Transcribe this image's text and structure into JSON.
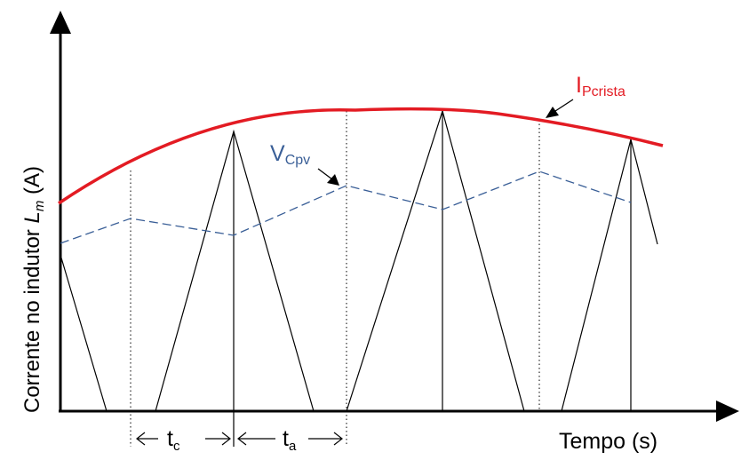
{
  "diagram": {
    "ylabel_main": "Corrente no indutor ",
    "ylabel_symbol": "L",
    "ylabel_sub": "m",
    "ylabel_unit": " (A)",
    "xlabel": "Tempo (s)",
    "label_ipeak_main": "I",
    "label_ipeak_sub": "Pcrista",
    "label_vcpv_main": "V",
    "label_vcpv_sub": "Cpv",
    "label_tc_main": "t",
    "label_tc_sub": "c",
    "label_ta_main": "t",
    "label_ta_sub": "a"
  },
  "colors": {
    "peak_envelope": "#e31b23",
    "vcpv_curve": "#3a5f97",
    "axes": "#000000",
    "ramps": "#000000",
    "guides": "#000000"
  }
}
